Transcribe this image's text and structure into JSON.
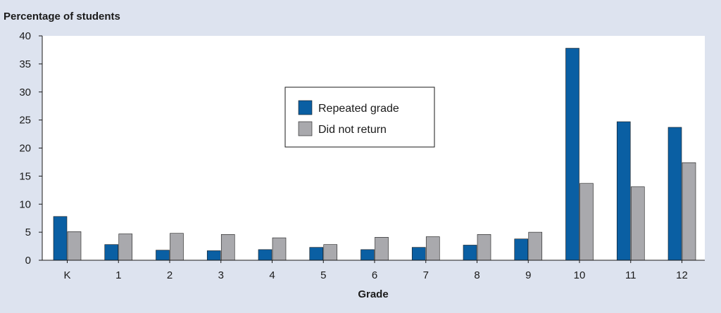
{
  "chart_data": {
    "type": "bar",
    "ylabel": "Percentage of students",
    "xlabel": "Grade",
    "categories": [
      "K",
      "1",
      "2",
      "3",
      "4",
      "5",
      "6",
      "7",
      "8",
      "9",
      "10",
      "11",
      "12"
    ],
    "ylim": [
      0,
      40
    ],
    "yticks": [
      0,
      5,
      10,
      15,
      20,
      25,
      30,
      35,
      40
    ],
    "grid": false,
    "legend_position": "center",
    "series": [
      {
        "name": "Repeated grade",
        "color": "#0a5fa3",
        "values": [
          7.8,
          2.8,
          1.8,
          1.7,
          1.9,
          2.3,
          1.9,
          2.3,
          2.7,
          3.8,
          37.8,
          24.7,
          23.7
        ]
      },
      {
        "name": "Did not return",
        "color": "#a9a9ad",
        "values": [
          5.1,
          4.7,
          4.8,
          4.6,
          4.0,
          2.8,
          4.1,
          4.2,
          4.6,
          5.0,
          13.7,
          13.1,
          17.4
        ]
      }
    ]
  }
}
